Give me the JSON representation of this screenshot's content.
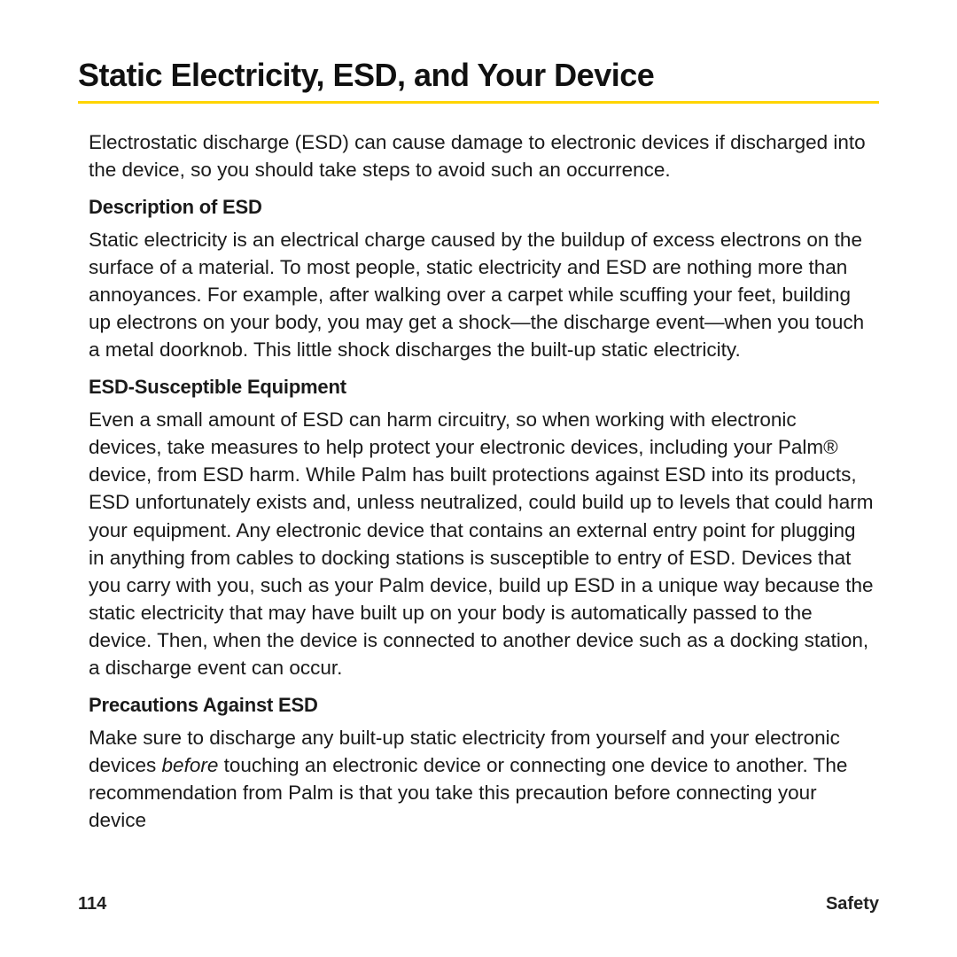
{
  "colors": {
    "text": "#1a1a1a",
    "heading": "#111111",
    "rule": "#ffd500",
    "background": "#ffffff"
  },
  "typography": {
    "title_pt": 27,
    "body_pt": 17,
    "subhead_pt": 17,
    "footer_pt": 15,
    "title_weight": 700,
    "subhead_weight": 700
  },
  "page": {
    "title": "Static Electricity, ESD, and Your Device",
    "intro": "Electrostatic discharge (ESD) can cause damage to electronic devices if discharged into the device, so you should take steps to avoid such an occurrence.",
    "sections": [
      {
        "heading": "Description of ESD",
        "body": "Static electricity is an electrical charge caused by the buildup of excess electrons on the surface of a material. To most people, static electricity and ESD are nothing more than annoyances. For example, after walking over a carpet while scuffing your feet, building up electrons on your body, you may get a shock—the discharge event—when you touch a metal doorknob. This little shock discharges the built-up static electricity."
      },
      {
        "heading": "ESD-Susceptible Equipment",
        "body": "Even a small amount of ESD can harm circuitry, so when working with electronic devices, take measures to help protect your electronic devices, including your Palm® device, from ESD harm. While Palm has built protections against ESD into its products, ESD unfortunately exists and, unless neutralized, could build up to levels that could harm your equipment. Any electronic device that contains an external entry point for plugging in anything from cables to docking stations is susceptible to entry of ESD. Devices that you carry with you, such as your Palm device, build up ESD in a unique way because the static electricity that may have built up on your body is automatically passed to the device. Then, when the device is connected to another device such as a docking station, a discharge event can occur."
      },
      {
        "heading": "Precautions Against ESD",
        "body_pre": "Make sure to discharge any built-up static electricity from yourself and your electronic devices ",
        "body_em": "before",
        "body_post": " touching an electronic device or connecting one device to another. The recommendation from Palm is that you take this precaution before connecting your device"
      }
    ],
    "footer": {
      "page_number": "114",
      "section_label": "Safety"
    }
  }
}
